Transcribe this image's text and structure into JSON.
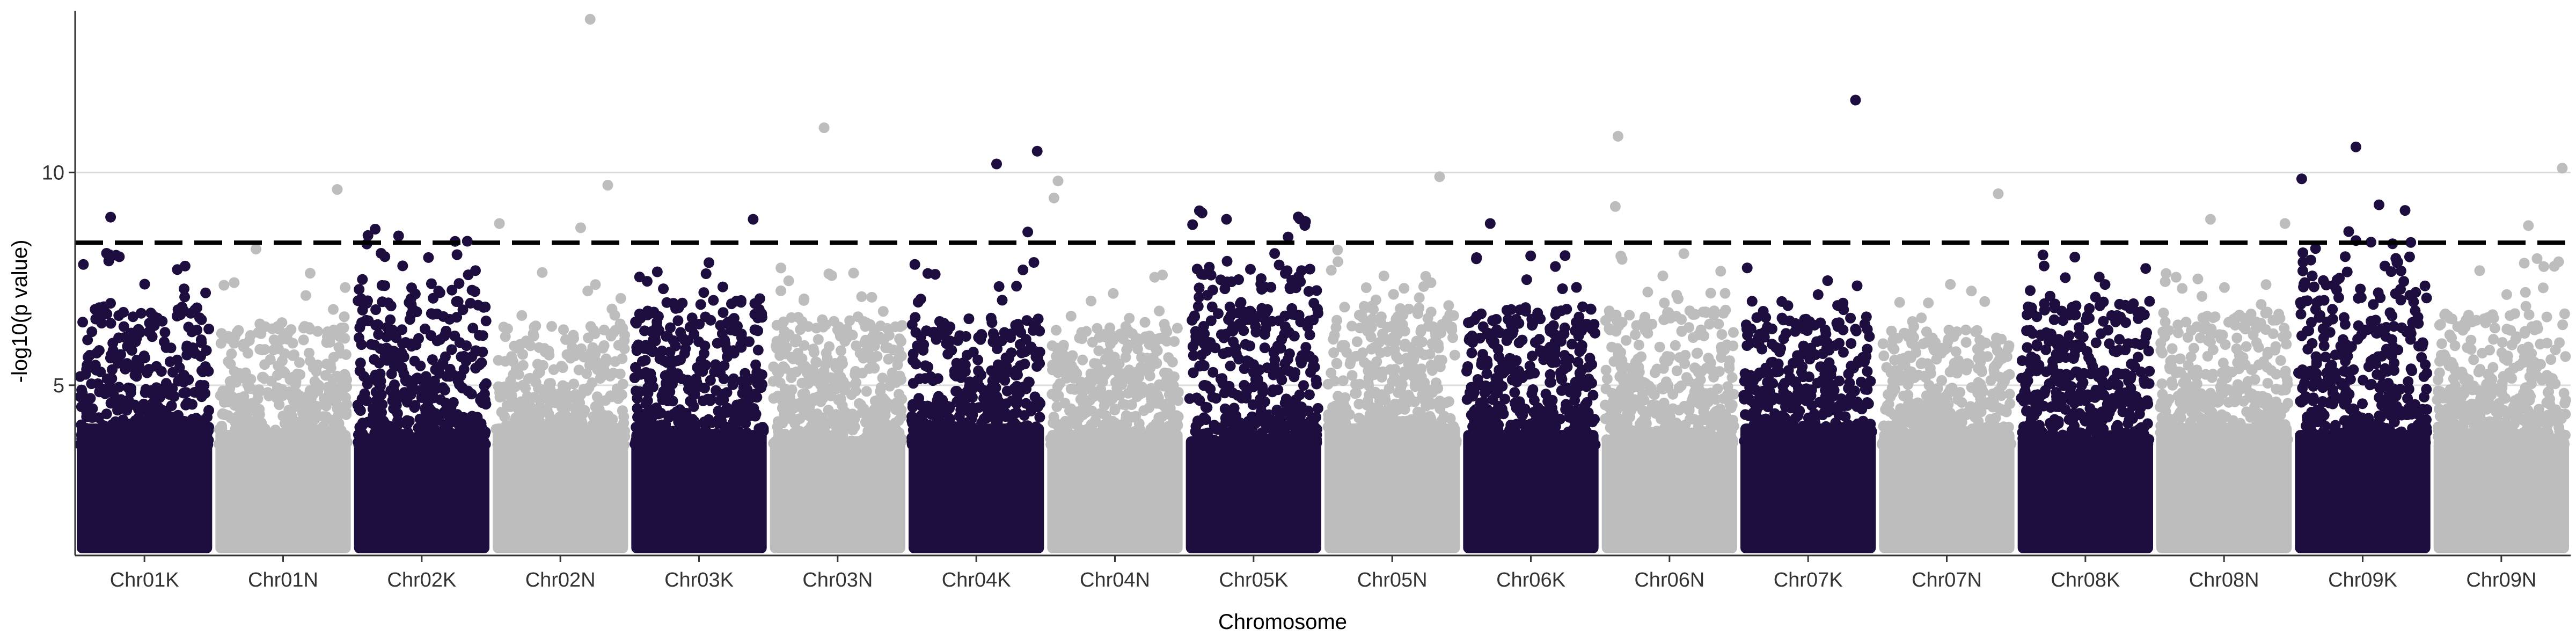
{
  "chart_data": {
    "type": "scatter",
    "subtype": "manhattan",
    "title": "",
    "xlabel": "Chromosome",
    "ylabel": "-log10(p value)",
    "ylim": [
      0,
      13.8
    ],
    "yticks": [
      5,
      10
    ],
    "threshold": 8.35,
    "grid": "horizontal major lines at y ticks",
    "legend": "none",
    "colors": {
      "odd": "#1d0e3f",
      "even": "#bdbdbd",
      "threshold": "#000000",
      "grid": "#dcdcdc",
      "axis": "#333333"
    },
    "categories": [
      "Chr01K",
      "Chr01N",
      "Chr02K",
      "Chr02N",
      "Chr03K",
      "Chr03N",
      "Chr04K",
      "Chr04N",
      "Chr05K",
      "Chr05N",
      "Chr06K",
      "Chr06N",
      "Chr07K",
      "Chr07N",
      "Chr08K",
      "Chr08N",
      "Chr09K",
      "Chr09N"
    ],
    "band_top": [
      5.5,
      5.0,
      6.0,
      5.0,
      5.6,
      5.2,
      5.2,
      5.0,
      6.4,
      5.5,
      5.4,
      5.4,
      5.2,
      4.9,
      5.6,
      5.3,
      6.6,
      5.3
    ],
    "notable_points": [
      {
        "chrom": "Chr01K",
        "pos": 0.25,
        "y": 8.95
      },
      {
        "chrom": "Chr01K",
        "pos": 0.22,
        "y": 8.1
      },
      {
        "chrom": "Chr01K",
        "pos": 0.8,
        "y": 7.8
      },
      {
        "chrom": "Chr01N",
        "pos": 0.9,
        "y": 9.6
      },
      {
        "chrom": "Chr01N",
        "pos": 0.3,
        "y": 8.2
      },
      {
        "chrom": "Chr02K",
        "pos": 0.2,
        "y": 8.1
      },
      {
        "chrom": "Chr02K",
        "pos": 0.55,
        "y": 8.0
      },
      {
        "chrom": "Chr02N",
        "pos": 0.05,
        "y": 8.8
      },
      {
        "chrom": "Chr02N",
        "pos": 0.72,
        "y": 13.6
      },
      {
        "chrom": "Chr02N",
        "pos": 0.85,
        "y": 9.7
      },
      {
        "chrom": "Chr02N",
        "pos": 0.65,
        "y": 8.7
      },
      {
        "chrom": "Chr03K",
        "pos": 0.9,
        "y": 8.9
      },
      {
        "chrom": "Chr03N",
        "pos": 0.4,
        "y": 11.05
      },
      {
        "chrom": "Chr04K",
        "pos": 0.65,
        "y": 10.2
      },
      {
        "chrom": "Chr04K",
        "pos": 0.95,
        "y": 10.5
      },
      {
        "chrom": "Chr04K",
        "pos": 0.88,
        "y": 8.6
      },
      {
        "chrom": "Chr04N",
        "pos": 0.08,
        "y": 9.8
      },
      {
        "chrom": "Chr04N",
        "pos": 0.05,
        "y": 9.4
      },
      {
        "chrom": "Chr05K",
        "pos": 0.1,
        "y": 9.1
      },
      {
        "chrom": "Chr05K",
        "pos": 0.12,
        "y": 9.05
      },
      {
        "chrom": "Chr05K",
        "pos": 0.3,
        "y": 8.9
      },
      {
        "chrom": "Chr05N",
        "pos": 0.85,
        "y": 9.9
      },
      {
        "chrom": "Chr06K",
        "pos": 0.2,
        "y": 8.8
      },
      {
        "chrom": "Chr06N",
        "pos": 0.12,
        "y": 10.85
      },
      {
        "chrom": "Chr06N",
        "pos": 0.1,
        "y": 9.2
      },
      {
        "chrom": "Chr07K",
        "pos": 0.85,
        "y": 11.7
      },
      {
        "chrom": "Chr07N",
        "pos": 0.88,
        "y": 9.5
      },
      {
        "chrom": "Chr08N",
        "pos": 0.4,
        "y": 8.9
      },
      {
        "chrom": "Chr08N",
        "pos": 0.95,
        "y": 8.8
      },
      {
        "chrom": "Chr09K",
        "pos": 0.05,
        "y": 9.85
      },
      {
        "chrom": "Chr09K",
        "pos": 0.45,
        "y": 10.6
      },
      {
        "chrom": "Chr09K",
        "pos": 0.45,
        "y": 8.4
      },
      {
        "chrom": "Chr09N",
        "pos": 0.7,
        "y": 8.75
      },
      {
        "chrom": "Chr09N",
        "pos": 0.95,
        "y": 10.1
      }
    ]
  }
}
